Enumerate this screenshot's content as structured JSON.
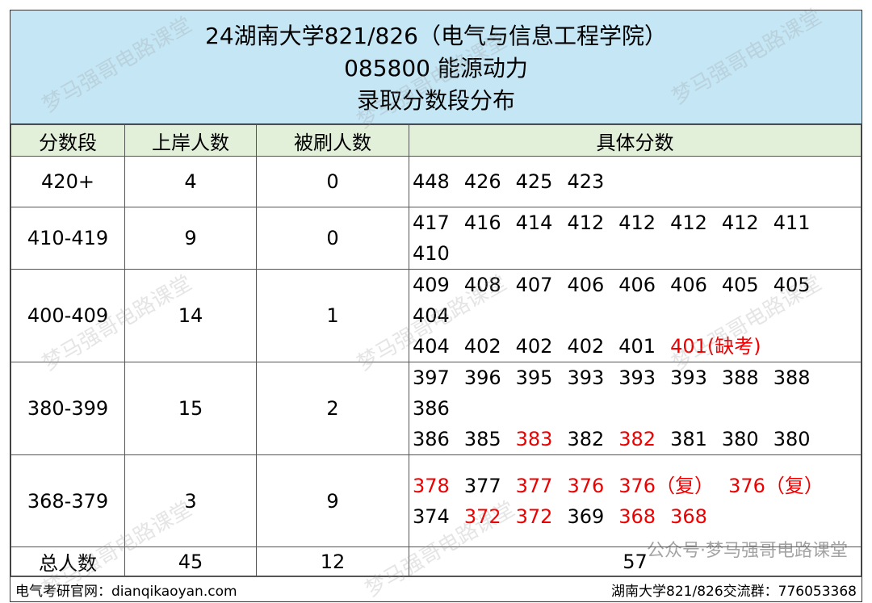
{
  "header": {
    "lines": [
      "24湖南大学821/826（电气与信息工程学院）",
      "085800 能源动力",
      "录取分数段分布"
    ]
  },
  "table": {
    "columns": [
      "分数段",
      "上岸人数",
      "被刷人数",
      "具体分数"
    ],
    "rows": [
      {
        "range": "420+",
        "admitted": 4,
        "rejected": 0,
        "lines": [
          [
            {
              "score": 448
            },
            {
              "score": 426
            },
            {
              "score": 425
            },
            {
              "score": 423
            }
          ]
        ]
      },
      {
        "range": "410-419",
        "admitted": 9,
        "rejected": 0,
        "lines": [
          [
            {
              "score": 417
            },
            {
              "score": 416
            },
            {
              "score": 414
            },
            {
              "score": 412
            },
            {
              "score": 412
            },
            {
              "score": 412
            },
            {
              "score": 412
            },
            {
              "score": 411
            },
            {
              "score": 410
            }
          ]
        ]
      },
      {
        "range": "400-409",
        "admitted": 14,
        "rejected": 1,
        "lines": [
          [
            {
              "score": 409
            },
            {
              "score": 408
            },
            {
              "score": 407
            },
            {
              "score": 406
            },
            {
              "score": 406
            },
            {
              "score": 406
            },
            {
              "score": 405
            },
            {
              "score": 405
            },
            {
              "score": 404
            }
          ],
          [
            {
              "score": 404
            },
            {
              "score": 402
            },
            {
              "score": 402
            },
            {
              "score": 402
            },
            {
              "score": 401
            },
            {
              "score": 401,
              "note": "(缺考)",
              "red": true
            }
          ]
        ]
      },
      {
        "range": "380-399",
        "admitted": 15,
        "rejected": 2,
        "lines": [
          [
            {
              "score": 397
            },
            {
              "score": 396
            },
            {
              "score": 395
            },
            {
              "score": 393
            },
            {
              "score": 393
            },
            {
              "score": 393
            },
            {
              "score": 388
            },
            {
              "score": 388
            },
            {
              "score": 386
            }
          ],
          [
            {
              "score": 386
            },
            {
              "score": 385
            },
            {
              "score": 383,
              "red": true
            },
            {
              "score": 382
            },
            {
              "score": 382,
              "red": true
            },
            {
              "score": 381
            },
            {
              "score": 380
            },
            {
              "score": 380
            }
          ]
        ]
      },
      {
        "range": "368-379",
        "admitted": 3,
        "rejected": 9,
        "lines": [
          [
            {
              "score": 378,
              "red": true
            },
            {
              "score": 377
            },
            {
              "score": 377,
              "red": true
            },
            {
              "score": 376,
              "red": true
            },
            {
              "score": 376,
              "note": "（复）",
              "red": true
            },
            {
              "score": 376,
              "note": "（复）",
              "red": true
            }
          ],
          [
            {
              "score": 374
            },
            {
              "score": 372,
              "red": true
            },
            {
              "score": 372,
              "red": true
            },
            {
              "score": 369
            },
            {
              "score": 368,
              "red": true
            },
            {
              "score": 368,
              "red": true
            }
          ]
        ]
      }
    ],
    "total": {
      "label": "总人数",
      "admitted": 45,
      "rejected": 12,
      "all": 57
    }
  },
  "footer": {
    "left": "电气考研官网：dianqikaoyan.com",
    "right": "湖南大学821/826交流群：776053368",
    "overlay": "公众号·梦马强哥电路课堂"
  },
  "watermark": "梦马强哥电路课堂"
}
